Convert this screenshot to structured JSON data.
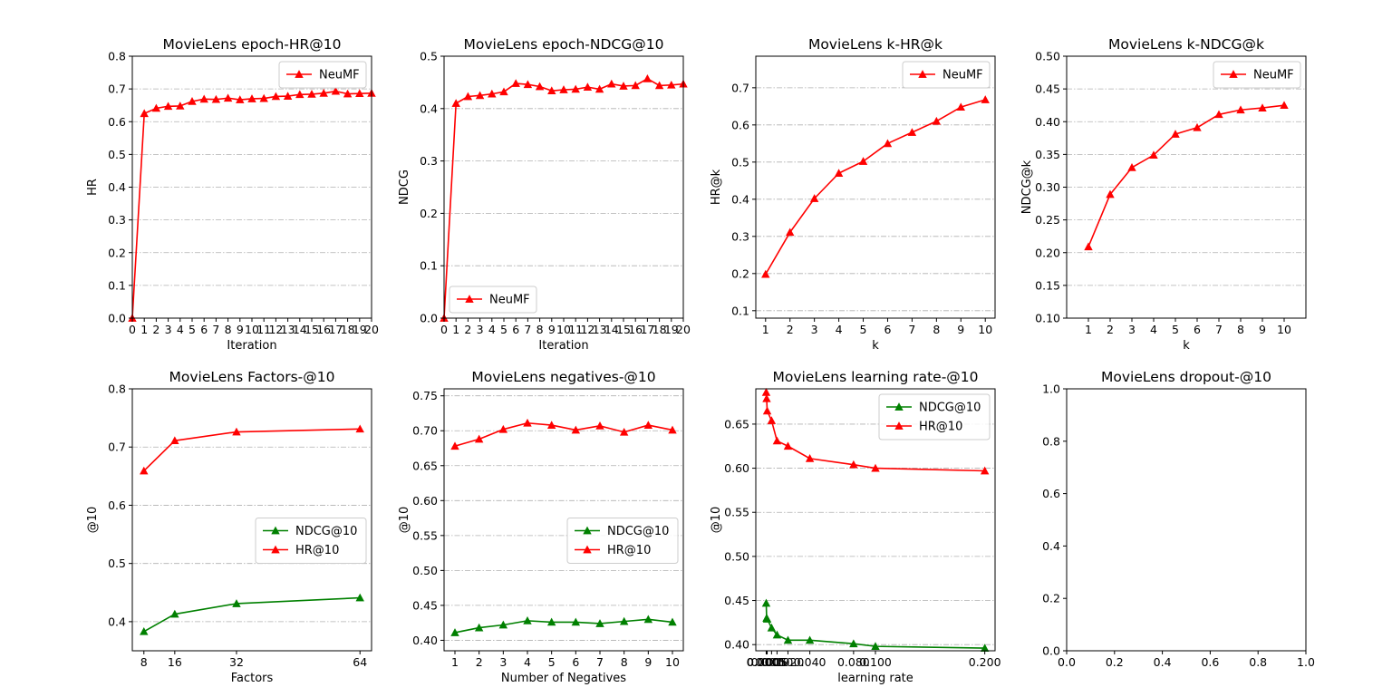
{
  "colors": {
    "red": "#ff0000",
    "green": "#008000",
    "grid": "#b0b0b0",
    "axis": "#000000"
  },
  "chart_data": [
    {
      "type": "line",
      "title": "MovieLens epoch-HR@10",
      "xlabel": "Iteration",
      "ylabel": "HR",
      "xlim": [
        0,
        20
      ],
      "ylim": [
        0,
        0.8
      ],
      "xticks": [
        0,
        1,
        2,
        3,
        4,
        5,
        6,
        7,
        8,
        9,
        10,
        11,
        12,
        13,
        14,
        15,
        16,
        17,
        18,
        19,
        20
      ],
      "xticklabels": [
        "0",
        "1",
        "2",
        "3",
        "4",
        "5",
        "6",
        "7",
        "8",
        "9",
        "10",
        "11",
        "12",
        "13",
        "14",
        "15",
        "16",
        "17",
        "18",
        "19",
        "20"
      ],
      "yticks": [
        0,
        0.1,
        0.2,
        0.3,
        0.4,
        0.5,
        0.6,
        0.7,
        0.8
      ],
      "yticklabels": [
        "0.0",
        "0.1",
        "0.2",
        "0.3",
        "0.4",
        "0.5",
        "0.6",
        "0.7",
        "0.8"
      ],
      "grid": true,
      "legend_loc": "upper-right",
      "series": [
        {
          "name": "NeuMF",
          "color": "#ff0000",
          "x": [
            0,
            1,
            2,
            3,
            4,
            5,
            6,
            7,
            8,
            9,
            10,
            11,
            12,
            13,
            14,
            15,
            16,
            17,
            18,
            19,
            20
          ],
          "y": [
            0.0,
            0.625,
            0.641,
            0.647,
            0.648,
            0.662,
            0.669,
            0.668,
            0.672,
            0.667,
            0.67,
            0.671,
            0.677,
            0.678,
            0.683,
            0.684,
            0.687,
            0.693,
            0.685,
            0.686,
            0.687
          ]
        }
      ]
    },
    {
      "type": "line",
      "title": "MovieLens epoch-NDCG@10",
      "xlabel": "Iteration",
      "ylabel": "NDCG",
      "xlim": [
        0,
        20
      ],
      "ylim": [
        0,
        0.5
      ],
      "xticks": [
        0,
        1,
        2,
        3,
        4,
        5,
        6,
        7,
        8,
        9,
        10,
        11,
        12,
        13,
        14,
        15,
        16,
        17,
        18,
        19,
        20
      ],
      "xticklabels": [
        "0",
        "1",
        "2",
        "3",
        "4",
        "5",
        "6",
        "7",
        "8",
        "9",
        "10",
        "11",
        "12",
        "13",
        "14",
        "15",
        "16",
        "17",
        "18",
        "19",
        "20"
      ],
      "yticks": [
        0,
        0.1,
        0.2,
        0.3,
        0.4,
        0.5
      ],
      "yticklabels": [
        "0.0",
        "0.1",
        "0.2",
        "0.3",
        "0.4",
        "0.5"
      ],
      "grid": true,
      "legend_loc": "lower-left",
      "series": [
        {
          "name": "NeuMF",
          "color": "#ff0000",
          "x": [
            0,
            1,
            2,
            3,
            4,
            5,
            6,
            7,
            8,
            9,
            10,
            11,
            12,
            13,
            14,
            15,
            16,
            17,
            18,
            19,
            20
          ],
          "y": [
            0.0,
            0.41,
            0.423,
            0.425,
            0.428,
            0.432,
            0.448,
            0.446,
            0.442,
            0.434,
            0.436,
            0.437,
            0.441,
            0.437,
            0.447,
            0.443,
            0.444,
            0.457,
            0.444,
            0.445,
            0.447
          ]
        }
      ]
    },
    {
      "type": "line",
      "title": "MovieLens k-HR@k",
      "xlabel": "k",
      "ylabel": "HR@k",
      "xlim": [
        0.6,
        10.4
      ],
      "ylim": [
        0.08,
        0.785
      ],
      "xticks": [
        1,
        2,
        3,
        4,
        5,
        6,
        7,
        8,
        9,
        10
      ],
      "xticklabels": [
        "1",
        "2",
        "3",
        "4",
        "5",
        "6",
        "7",
        "8",
        "9",
        "10"
      ],
      "yticks": [
        0.1,
        0.2,
        0.3,
        0.4,
        0.5,
        0.6,
        0.7
      ],
      "yticklabels": [
        "0.1",
        "0.2",
        "0.3",
        "0.4",
        "0.5",
        "0.6",
        "0.7"
      ],
      "grid": true,
      "legend_loc": "upper-right",
      "series": [
        {
          "name": "NeuMF",
          "color": "#ff0000",
          "x": [
            1,
            2,
            3,
            4,
            5,
            6,
            7,
            8,
            9,
            10
          ],
          "y": [
            0.198,
            0.311,
            0.402,
            0.47,
            0.502,
            0.55,
            0.58,
            0.61,
            0.648,
            0.668
          ]
        }
      ]
    },
    {
      "type": "line",
      "title": "MovieLens k-NDCG@k",
      "xlabel": "k",
      "ylabel": "NDCG@k",
      "xlim": [
        0,
        11
      ],
      "ylim": [
        0.1,
        0.5
      ],
      "xticks": [
        1,
        2,
        3,
        4,
        5,
        6,
        7,
        8,
        9,
        10
      ],
      "xticklabels": [
        "1",
        "2",
        "3",
        "4",
        "5",
        "6",
        "7",
        "8",
        "9",
        "10"
      ],
      "yticks": [
        0.1,
        0.15,
        0.2,
        0.25,
        0.3,
        0.35,
        0.4,
        0.45,
        0.5
      ],
      "yticklabels": [
        "0.10",
        "0.15",
        "0.20",
        "0.25",
        "0.30",
        "0.35",
        "0.40",
        "0.45",
        "0.50"
      ],
      "grid": true,
      "legend_loc": "upper-right",
      "series": [
        {
          "name": "NeuMF",
          "color": "#ff0000",
          "x": [
            1,
            2,
            3,
            4,
            5,
            6,
            7,
            8,
            9,
            10
          ],
          "y": [
            0.209,
            0.289,
            0.33,
            0.349,
            0.381,
            0.391,
            0.411,
            0.418,
            0.421,
            0.425
          ]
        }
      ]
    },
    {
      "type": "line",
      "title": "MovieLens Factors-@10",
      "xlabel": "Factors",
      "ylabel": "@10",
      "xlim": [
        5,
        67
      ],
      "ylim": [
        0.35,
        0.8
      ],
      "xticks": [
        8,
        16,
        32,
        64
      ],
      "xticklabels": [
        "8",
        "16",
        "32",
        "64"
      ],
      "yticks": [
        0.4,
        0.5,
        0.6,
        0.7,
        0.8
      ],
      "yticklabels": [
        "0.4",
        "0.5",
        "0.6",
        "0.7",
        "0.8"
      ],
      "grid": true,
      "legend_loc": "center-right",
      "series": [
        {
          "name": "NDCG@10",
          "color": "#008000",
          "x": [
            8,
            16,
            32,
            64
          ],
          "y": [
            0.383,
            0.413,
            0.431,
            0.441
          ]
        },
        {
          "name": "HR@10",
          "color": "#ff0000",
          "x": [
            8,
            16,
            32,
            64
          ],
          "y": [
            0.659,
            0.711,
            0.726,
            0.731
          ]
        }
      ]
    },
    {
      "type": "line",
      "title": "MovieLens negatives-@10",
      "xlabel": "Number of Negatives",
      "ylabel": "@10",
      "xlim": [
        0.55,
        10.45
      ],
      "ylim": [
        0.385,
        0.76
      ],
      "xticks": [
        1,
        2,
        3,
        4,
        5,
        6,
        7,
        8,
        9,
        10
      ],
      "xticklabels": [
        "1",
        "2",
        "3",
        "4",
        "5",
        "6",
        "7",
        "8",
        "9",
        "10"
      ],
      "yticks": [
        0.4,
        0.45,
        0.5,
        0.55,
        0.6,
        0.65,
        0.7,
        0.75
      ],
      "yticklabels": [
        "0.40",
        "0.45",
        "0.50",
        "0.55",
        "0.60",
        "0.65",
        "0.70",
        "0.75"
      ],
      "grid": true,
      "legend_loc": "center-right",
      "series": [
        {
          "name": "NDCG@10",
          "color": "#008000",
          "x": [
            1,
            2,
            3,
            4,
            5,
            6,
            7,
            8,
            9,
            10
          ],
          "y": [
            0.411,
            0.418,
            0.422,
            0.428,
            0.426,
            0.426,
            0.424,
            0.427,
            0.43,
            0.426
          ]
        },
        {
          "name": "HR@10",
          "color": "#ff0000",
          "x": [
            1,
            2,
            3,
            4,
            5,
            6,
            7,
            8,
            9,
            10
          ],
          "y": [
            0.678,
            0.688,
            0.702,
            0.711,
            0.708,
            0.701,
            0.707,
            0.698,
            0.708,
            0.701
          ]
        }
      ]
    },
    {
      "type": "line",
      "title": "MovieLens learning rate-@10",
      "xlabel": "learning rate",
      "ylabel": "@10",
      "xlim": [
        -0.0094,
        0.2094
      ],
      "ylim": [
        0.393,
        0.69
      ],
      "xticks": [
        0.0001,
        0.0005,
        0.001,
        0.005,
        0.01,
        0.02,
        0.04,
        0.08,
        0.1,
        0.2
      ],
      "xticklabels": [
        "0.0001",
        "0.0005",
        "0.001",
        "0.005",
        "0.010",
        "0.020",
        "0.040",
        "0.080",
        "0.100",
        "0.200"
      ],
      "yticks": [
        0.4,
        0.45,
        0.5,
        0.55,
        0.6,
        0.65
      ],
      "yticklabels": [
        "0.40",
        "0.45",
        "0.50",
        "0.55",
        "0.60",
        "0.65"
      ],
      "grid": true,
      "legend_loc": "upper-right",
      "series": [
        {
          "name": "NDCG@10",
          "color": "#008000",
          "x": [
            0.0001,
            0.0005,
            0.001,
            0.005,
            0.01,
            0.02,
            0.04,
            0.08,
            0.1,
            0.2
          ],
          "y": [
            0.447,
            0.43,
            0.429,
            0.419,
            0.411,
            0.405,
            0.405,
            0.401,
            0.398,
            0.396
          ]
        },
        {
          "name": "HR@10",
          "color": "#ff0000",
          "x": [
            0.0001,
            0.0005,
            0.001,
            0.005,
            0.01,
            0.02,
            0.04,
            0.08,
            0.1,
            0.2
          ],
          "y": [
            0.686,
            0.679,
            0.665,
            0.654,
            0.631,
            0.625,
            0.611,
            0.604,
            0.6,
            0.597
          ]
        }
      ]
    },
    {
      "type": "line",
      "title": "MovieLens dropout-@10",
      "xlabel": "",
      "ylabel": "",
      "xlim": [
        0,
        1
      ],
      "ylim": [
        0,
        1
      ],
      "xticks": [
        0,
        0.2,
        0.4,
        0.6,
        0.8,
        1.0
      ],
      "xticklabels": [
        "0.0",
        "0.2",
        "0.4",
        "0.6",
        "0.8",
        "1.0"
      ],
      "yticks": [
        0,
        0.2,
        0.4,
        0.6,
        0.8,
        1.0
      ],
      "yticklabels": [
        "0.0",
        "0.2",
        "0.4",
        "0.6",
        "0.8",
        "1.0"
      ],
      "grid": false,
      "legend_loc": "none",
      "series": []
    }
  ]
}
